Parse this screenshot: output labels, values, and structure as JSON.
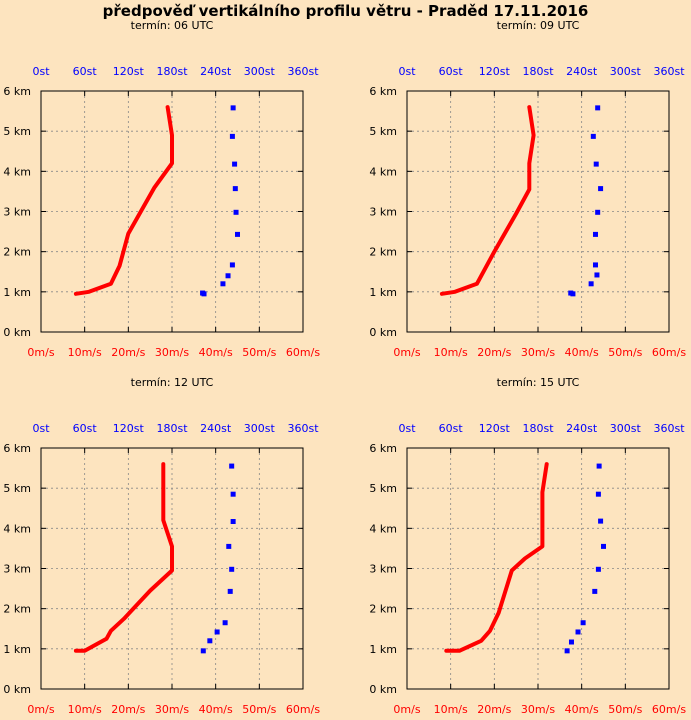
{
  "title": "předpověď vertikálního profilu větru - Praděd 17.11.2016",
  "colors": {
    "speed": "#ff0000",
    "direction": "#0000ff",
    "background": "#fde4bf",
    "grid": "#888888"
  },
  "axes": {
    "y_ticks": [
      "0 km",
      "1 km",
      "2 km",
      "3 km",
      "4 km",
      "5 km",
      "6 km"
    ],
    "y_values": [
      0,
      1,
      2,
      3,
      4,
      5,
      6
    ],
    "speed_ticks": [
      "0m/s",
      "10m/s",
      "20m/s",
      "30m/s",
      "40m/s",
      "50m/s",
      "60m/s"
    ],
    "speed_values": [
      0,
      10,
      20,
      30,
      40,
      50,
      60
    ],
    "dir_ticks": [
      "0st",
      "60st",
      "120st",
      "180st",
      "240st",
      "300st",
      "360st"
    ],
    "dir_values": [
      0,
      60,
      120,
      180,
      240,
      300,
      360
    ]
  },
  "chart_data": [
    {
      "type": "line",
      "subtitle": "termín: 06 UTC",
      "ylim": [
        0,
        6
      ],
      "speed_lim": [
        0,
        60
      ],
      "dir_lim": [
        0,
        360
      ],
      "series": [
        {
          "unit": "m/s",
          "style": "line",
          "points": [
            [
              8,
              0.95
            ],
            [
              11,
              1.0
            ],
            [
              16,
              1.2
            ],
            [
              18,
              1.65
            ],
            [
              20,
              2.45
            ],
            [
              26,
              3.6
            ],
            [
              30,
              4.2
            ],
            [
              30,
              4.9
            ],
            [
              29,
              5.6
            ]
          ]
        },
        {
          "unit": "st",
          "style": "dots",
          "points": [
            [
              224,
              0.95
            ],
            [
              222,
              0.97
            ],
            [
              250,
              1.2
            ],
            [
              257,
              1.4
            ],
            [
              263,
              1.67
            ],
            [
              270,
              2.43
            ],
            [
              268,
              2.98
            ],
            [
              267,
              3.57
            ],
            [
              266,
              4.18
            ],
            [
              263,
              4.87
            ],
            [
              264,
              5.58
            ]
          ]
        }
      ]
    },
    {
      "type": "line",
      "subtitle": "termín: 09 UTC",
      "ylim": [
        0,
        6
      ],
      "speed_lim": [
        0,
        60
      ],
      "dir_lim": [
        0,
        360
      ],
      "series": [
        {
          "unit": "m/s",
          "style": "line",
          "points": [
            [
              8,
              0.95
            ],
            [
              11,
              1.0
            ],
            [
              16,
              1.2
            ],
            [
              20,
              2.0
            ],
            [
              25,
              2.95
            ],
            [
              28,
              3.55
            ],
            [
              28,
              4.2
            ],
            [
              29,
              4.9
            ],
            [
              28,
              5.6
            ]
          ]
        },
        {
          "unit": "st",
          "style": "dots",
          "points": [
            [
              228,
              0.95
            ],
            [
              225,
              0.97
            ],
            [
              253,
              1.2
            ],
            [
              261,
              1.42
            ],
            [
              259,
              1.67
            ],
            [
              259,
              2.43
            ],
            [
              262,
              2.98
            ],
            [
              266,
              3.57
            ],
            [
              260,
              4.18
            ],
            [
              256,
              4.87
            ],
            [
              262,
              5.58
            ]
          ]
        }
      ]
    },
    {
      "type": "line",
      "subtitle": "termín: 12 UTC",
      "ylim": [
        0,
        6
      ],
      "speed_lim": [
        0,
        60
      ],
      "dir_lim": [
        0,
        360
      ],
      "series": [
        {
          "unit": "m/s",
          "style": "line",
          "points": [
            [
              8,
              0.95
            ],
            [
              10,
              0.95
            ],
            [
              15,
              1.25
            ],
            [
              16,
              1.45
            ],
            [
              19,
              1.75
            ],
            [
              25,
              2.45
            ],
            [
              30,
              2.95
            ],
            [
              30,
              3.55
            ],
            [
              28,
              4.2
            ],
            [
              28,
              4.9
            ],
            [
              28,
              5.6
            ]
          ]
        },
        {
          "unit": "st",
          "style": "dots",
          "points": [
            [
              223,
              0.95
            ],
            [
              232,
              1.2
            ],
            [
              242,
              1.42
            ],
            [
              253,
              1.65
            ],
            [
              260,
              2.43
            ],
            [
              262,
              2.98
            ],
            [
              258,
              3.55
            ],
            [
              264,
              4.17
            ],
            [
              264,
              4.85
            ],
            [
              262,
              5.55
            ]
          ]
        }
      ]
    },
    {
      "type": "line",
      "subtitle": "termín: 15 UTC",
      "ylim": [
        0,
        6
      ],
      "speed_lim": [
        0,
        60
      ],
      "dir_lim": [
        0,
        360
      ],
      "series": [
        {
          "unit": "m/s",
          "style": "line",
          "points": [
            [
              9,
              0.95
            ],
            [
              12,
              0.95
            ],
            [
              17,
              1.2
            ],
            [
              19,
              1.45
            ],
            [
              21,
              1.9
            ],
            [
              24,
              2.95
            ],
            [
              27,
              3.25
            ],
            [
              31,
              3.55
            ],
            [
              31,
              4.2
            ],
            [
              31,
              4.9
            ],
            [
              32,
              5.6
            ]
          ]
        },
        {
          "unit": "st",
          "style": "dots",
          "points": [
            [
              220,
              0.95
            ],
            [
              226,
              1.17
            ],
            [
              235,
              1.42
            ],
            [
              242,
              1.65
            ],
            [
              258,
              2.43
            ],
            [
              263,
              2.98
            ],
            [
              270,
              3.55
            ],
            [
              266,
              4.18
            ],
            [
              263,
              4.85
            ],
            [
              264,
              5.55
            ]
          ]
        }
      ]
    }
  ]
}
